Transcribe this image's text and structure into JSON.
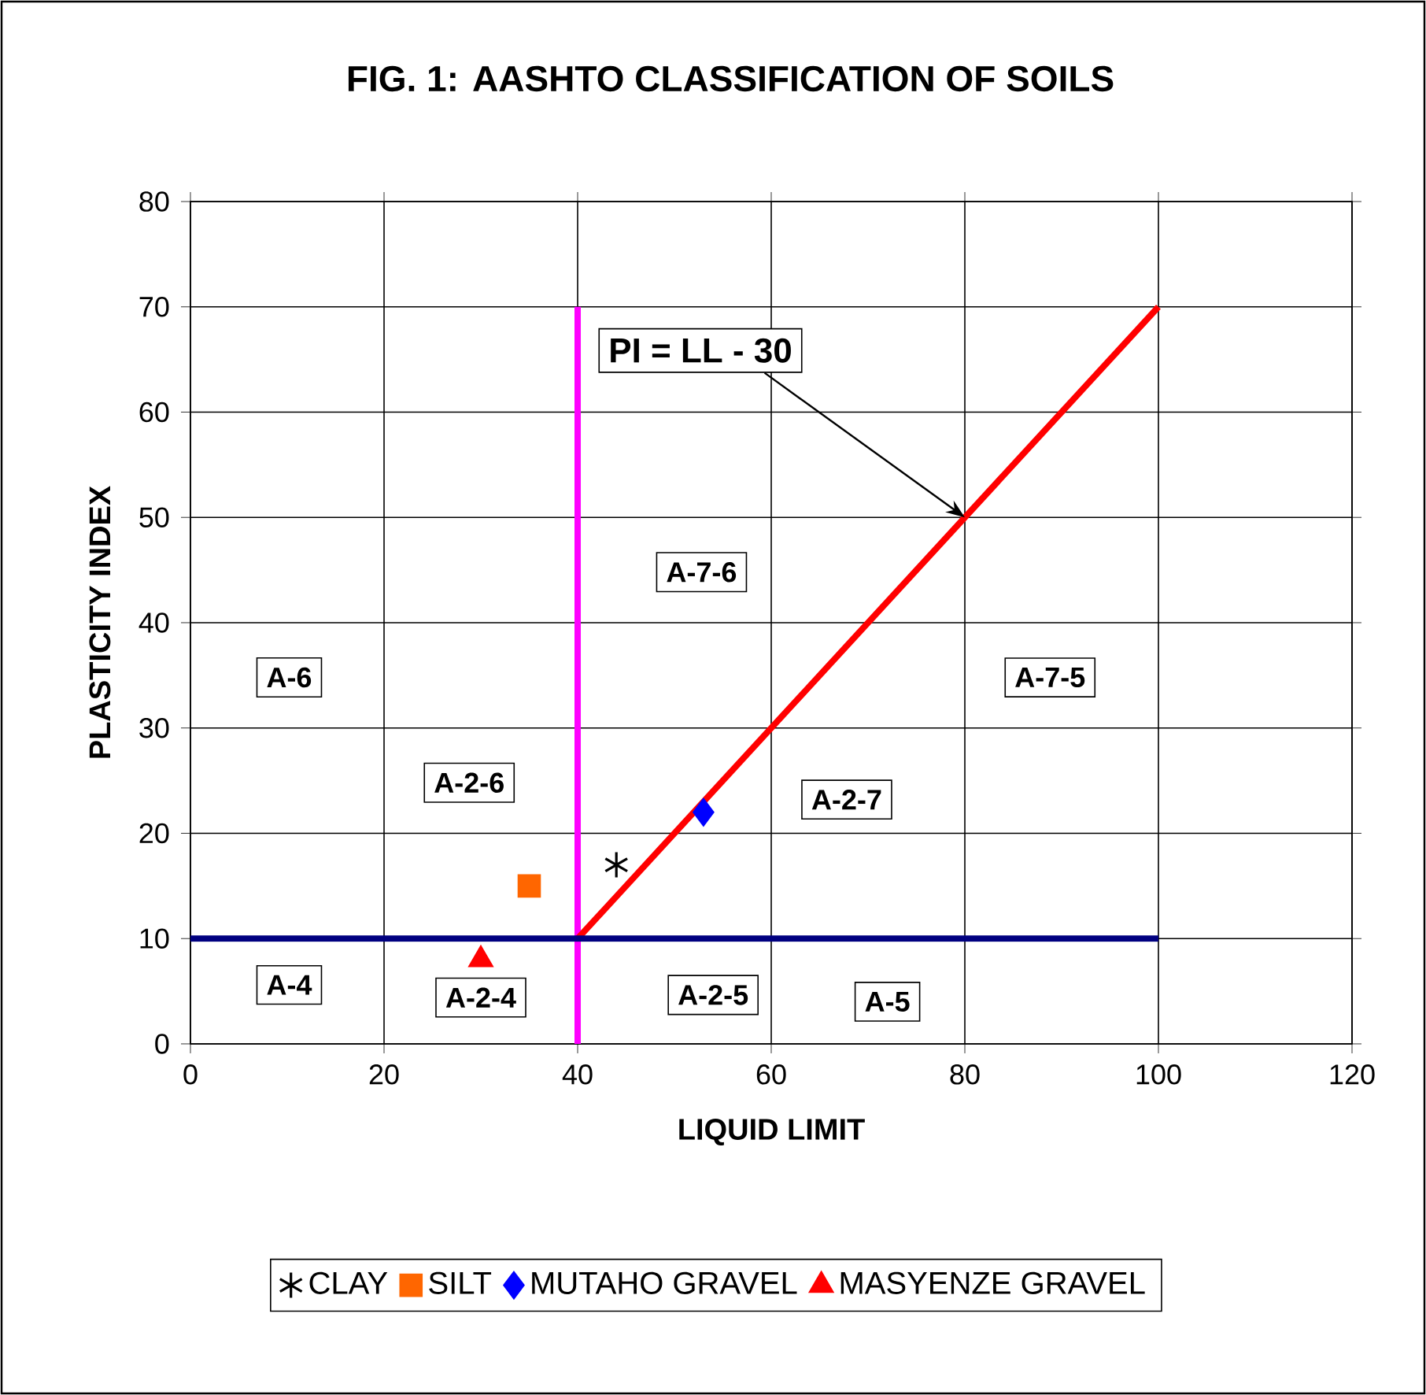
{
  "chart_data": {
    "type": "scatter",
    "title": "FIG. 1: AASHTO CLASSIFICATION OF SOILS",
    "xlabel": "LIQUID LIMIT",
    "ylabel": "PLASTICITY INDEX",
    "xlim": [
      0,
      120
    ],
    "ylim": [
      0,
      80
    ],
    "xticks": [
      0,
      20,
      40,
      60,
      80,
      100,
      120
    ],
    "yticks": [
      0,
      10,
      20,
      30,
      40,
      50,
      60,
      70,
      80
    ],
    "grid": true,
    "legend": "bottom",
    "series": [
      {
        "type": "line",
        "color": "#ff00ff",
        "x": [
          40,
          40
        ],
        "values": [
          0,
          70
        ],
        "marker": "none",
        "line_style": "solid"
      },
      {
        "type": "line",
        "color": "#ff0000",
        "x": [
          40,
          100
        ],
        "values": [
          10,
          70
        ],
        "marker": "none",
        "line_style": "solid"
      },
      {
        "type": "line",
        "color": "#000080",
        "x": [
          0,
          100
        ],
        "values": [
          10,
          10
        ],
        "marker": "none",
        "line_style": "solid"
      },
      {
        "name": "CLAY",
        "color": "#000000",
        "x": [
          44
        ],
        "values": [
          17
        ],
        "marker": "cross"
      },
      {
        "name": "SILT",
        "color": "#ff6600",
        "x": [
          35
        ],
        "values": [
          15
        ],
        "marker": "square"
      },
      {
        "name": "MUTAHO GRAVEL",
        "color": "#0000ff",
        "x": [
          53
        ],
        "values": [
          22
        ],
        "marker": "diamond"
      },
      {
        "name": "MASYENZE GRAVEL",
        "color": "#ff0000",
        "x": [
          30
        ],
        "values": [
          8
        ],
        "marker": "triangle"
      }
    ],
    "annotations": [
      {
        "text": "PI = LL - 30",
        "x": 80,
        "y": 50
      },
      "A-6",
      "A-7-6",
      "A-7-5",
      "A-2-6",
      "A-2-7",
      "A-4",
      "A-2-4",
      "A-2-5",
      "A-5"
    ]
  }
}
